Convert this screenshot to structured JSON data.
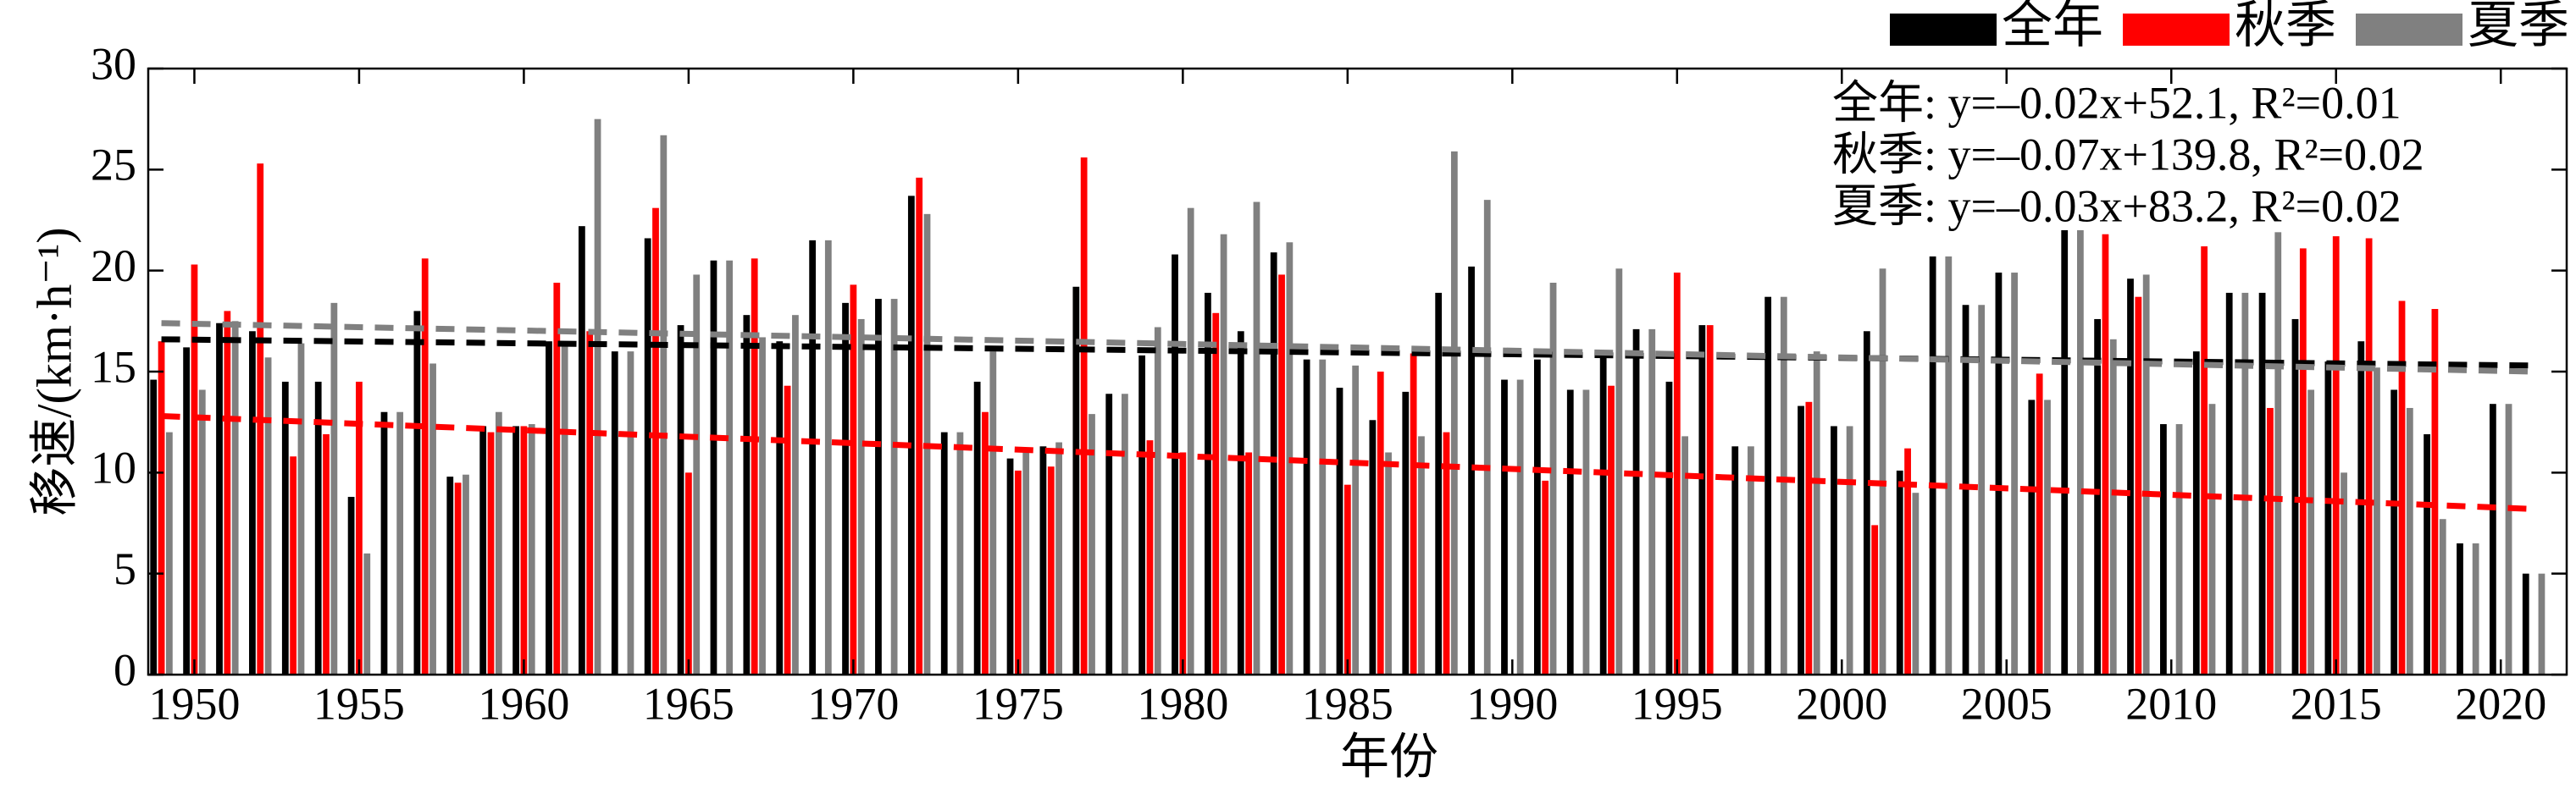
{
  "chart_data": {
    "type": "bar",
    "xlabel": "年份",
    "ylabel": "移速/(km·h⁻¹)",
    "x": [
      1949,
      1950,
      1951,
      1952,
      1953,
      1954,
      1955,
      1956,
      1957,
      1958,
      1959,
      1960,
      1961,
      1962,
      1963,
      1964,
      1965,
      1966,
      1967,
      1968,
      1969,
      1970,
      1971,
      1972,
      1973,
      1974,
      1975,
      1976,
      1977,
      1978,
      1979,
      1980,
      1981,
      1982,
      1983,
      1984,
      1985,
      1986,
      1987,
      1988,
      1989,
      1990,
      1991,
      1992,
      1993,
      1994,
      1995,
      1996,
      1997,
      1998,
      1999,
      2000,
      2001,
      2002,
      2003,
      2004,
      2005,
      2006,
      2007,
      2008,
      2009,
      2010,
      2011,
      2012,
      2013,
      2014,
      2015,
      2016,
      2017,
      2018,
      2019,
      2020,
      2021
    ],
    "series": [
      {
        "name": "全年",
        "color": "#000000",
        "values": [
          14.6,
          16.2,
          17.4,
          17.0,
          14.5,
          14.5,
          8.8,
          13.0,
          18.0,
          9.8,
          12.3,
          12.3,
          16.5,
          22.2,
          16.0,
          21.6,
          17.3,
          20.5,
          17.8,
          16.5,
          21.5,
          18.4,
          18.6,
          23.7,
          12.0,
          14.5,
          10.7,
          11.3,
          19.2,
          13.9,
          15.8,
          20.8,
          18.9,
          17.0,
          20.9,
          15.6,
          14.2,
          12.6,
          14.0,
          18.9,
          20.2,
          14.6,
          15.6,
          14.1,
          15.9,
          17.1,
          14.5,
          17.3,
          11.3,
          18.7,
          13.3,
          12.3,
          17.0,
          10.1,
          20.7,
          18.3,
          19.9,
          13.6,
          22.0,
          17.6,
          19.6,
          12.4,
          16.0,
          18.9,
          18.9,
          17.6,
          15.5,
          16.5,
          14.1,
          11.9,
          6.5,
          13.4,
          5.0
        ],
        "trend": {
          "x": [
            1949,
            2021
          ],
          "values": [
            16.6,
            15.3
          ]
        }
      },
      {
        "name": "秋季",
        "color": "#ff0000",
        "values": [
          16.5,
          20.3,
          18.0,
          25.3,
          10.8,
          11.9,
          14.5,
          null,
          20.6,
          9.5,
          12.0,
          12.3,
          19.4,
          17.0,
          null,
          23.1,
          10.0,
          null,
          20.6,
          14.3,
          null,
          19.3,
          null,
          24.6,
          null,
          13.0,
          10.1,
          10.3,
          25.6,
          null,
          11.6,
          11.0,
          17.9,
          11.0,
          19.8,
          null,
          9.4,
          15.0,
          15.9,
          12.0,
          null,
          null,
          9.6,
          null,
          14.3,
          null,
          19.9,
          17.3,
          null,
          null,
          13.5,
          null,
          7.4,
          11.2,
          null,
          null,
          null,
          14.9,
          null,
          21.8,
          18.7,
          null,
          21.2,
          null,
          13.2,
          21.1,
          21.7,
          21.6,
          18.5,
          18.1,
          null,
          null,
          null
        ],
        "trend": {
          "x": [
            1949,
            2021
          ],
          "values": [
            12.8,
            8.2
          ]
        }
      },
      {
        "name": "夏季",
        "color": "#808080",
        "values": [
          12.0,
          14.1,
          17.5,
          15.7,
          16.4,
          18.4,
          6.0,
          13.0,
          15.4,
          9.9,
          13.0,
          12.4,
          16.5,
          27.5,
          16.0,
          26.7,
          19.8,
          20.5,
          16.7,
          17.8,
          21.5,
          17.6,
          18.6,
          22.8,
          12.0,
          16.0,
          11.2,
          11.5,
          12.9,
          13.9,
          17.2,
          23.1,
          21.8,
          23.4,
          21.4,
          15.6,
          15.3,
          11.0,
          11.8,
          25.9,
          23.5,
          14.6,
          19.4,
          14.1,
          20.1,
          17.1,
          11.8,
          null,
          11.3,
          18.7,
          16.0,
          12.3,
          20.1,
          9.0,
          20.7,
          18.3,
          19.9,
          13.6,
          22.0,
          16.6,
          19.8,
          12.4,
          13.4,
          18.9,
          21.9,
          14.1,
          10.0,
          15.2,
          13.2,
          7.7,
          6.5,
          13.4,
          5.0
        ],
        "trend": {
          "x": [
            1949,
            2021
          ],
          "values": [
            17.4,
            15.0
          ]
        }
      }
    ],
    "annotations": [
      {
        "text": "全年: y=–0.02x+52.1, R²=0.01",
        "color": "#000000"
      },
      {
        "text": "秋季: y=–0.07x+139.8, R²=0.02",
        "color": "#ff0000"
      },
      {
        "text": "夏季: y=–0.03x+83.2, R²=0.02",
        "color": "#808080"
      }
    ],
    "xlim": [
      1948.6,
      2022
    ],
    "xticks": [
      1950,
      1955,
      1960,
      1965,
      1970,
      1975,
      1980,
      1985,
      1990,
      1995,
      2000,
      2005,
      2010,
      2015,
      2020
    ],
    "ylim": [
      0,
      30
    ],
    "yticks": [
      0,
      5,
      10,
      15,
      20,
      25,
      30
    ],
    "grid": false,
    "legend": "top-right"
  }
}
